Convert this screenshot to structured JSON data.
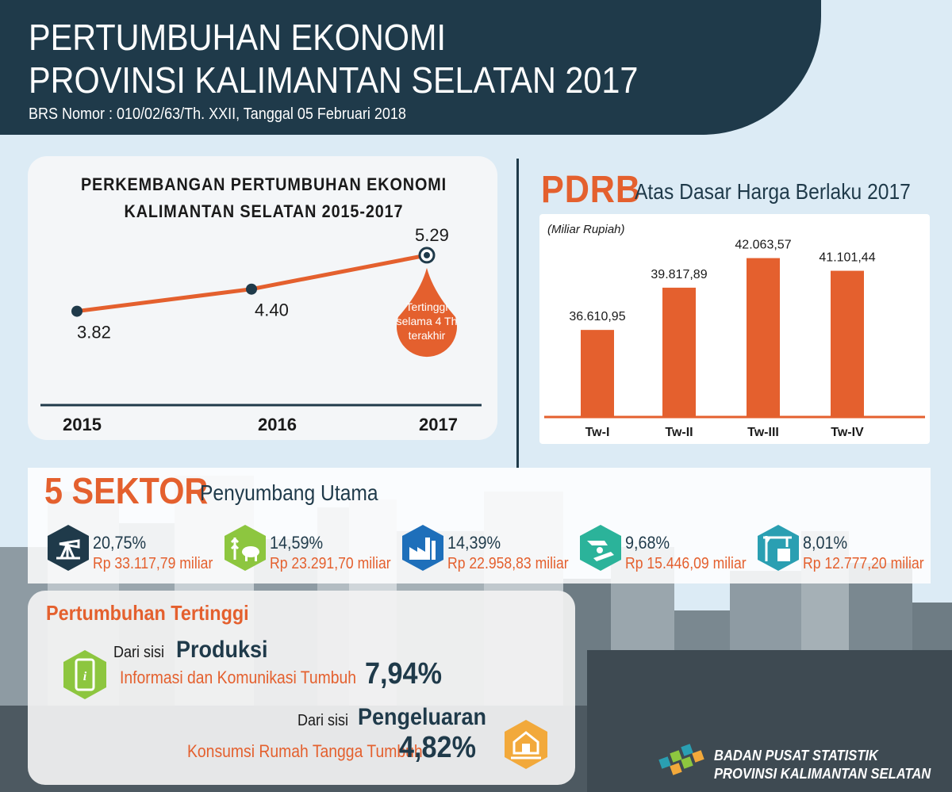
{
  "header": {
    "title_line1": "PERTUMBUHAN EKONOMI",
    "title_line2": "PROVINSI KALIMANTAN SELATAN 2017",
    "subtitle": "BRS Nomor : 010/02/63/Th. XXII, Tanggal 05 Februari 2018"
  },
  "colors": {
    "navy": "#1f3a4a",
    "orange": "#e4602e",
    "teal": "#2a9fb2",
    "green": "#8dc63f",
    "blue": "#1e6fba"
  },
  "chart_data": [
    {
      "type": "line",
      "title_line1": "PERKEMBANGAN PERTUMBUHAN EKONOMI",
      "title_line2": "KALIMANTAN SELATAN 2015-2017",
      "categories": [
        "2015",
        "2016",
        "2017"
      ],
      "values": [
        3.82,
        4.4,
        5.29
      ],
      "value_labels": [
        "3.82",
        "4.40",
        "5.29"
      ],
      "annotation": [
        "Tertinggi",
        "selama 4 Th",
        "terakhir"
      ],
      "ylim": [
        3.0,
        5.6
      ]
    },
    {
      "type": "bar",
      "title": "PDRB",
      "subtitle": "Atas Dasar Harga Berlaku 2017",
      "unit": "(Miliar Rupiah)",
      "categories": [
        "Tw-I",
        "Tw-II",
        "Tw-III",
        "Tw-IV"
      ],
      "values": [
        36610.95,
        39817.89,
        42063.57,
        41101.44
      ],
      "value_labels": [
        "36.610,95",
        "39.817,89",
        "42.063,57",
        "41.101,44"
      ],
      "ylim": [
        30000,
        43000
      ]
    }
  ],
  "sectors": {
    "title": "5 SEKTOR",
    "subtitle": "Penyumbang Utama",
    "items": [
      {
        "icon": "mining-pump-icon",
        "color": "#1f3a4a",
        "percent": "20,75%",
        "value": "Rp 33.117,79 miliar"
      },
      {
        "icon": "agriculture-icon",
        "color": "#8dc63f",
        "percent": "14,59%",
        "value": "Rp 23.291,70 miliar"
      },
      {
        "icon": "factory-icon",
        "color": "#1e6fba",
        "percent": "14,39%",
        "value": "Rp 22.958,83 miliar"
      },
      {
        "icon": "trade-car-icon",
        "color": "#2bb39a",
        "percent": "9,68%",
        "value": "Rp 15.446,09 miliar"
      },
      {
        "icon": "construction-crane-icon",
        "color": "#2a9fb2",
        "percent": "8,01%",
        "value": "Rp 12.777,20 miliar"
      }
    ]
  },
  "growth": {
    "title": "Pertumbuhan Tertinggi",
    "production_prefix": "Dari sisi",
    "production_label": "Produksi",
    "production_text": "Informasi dan Komunikasi Tumbuh",
    "production_value": "7,94%",
    "expenditure_prefix": "Dari sisi",
    "expenditure_label": "Pengeluaran",
    "expenditure_text": "Konsumsi Rumah Tangga Tumbuh",
    "expenditure_value": "4,82%"
  },
  "footer": {
    "org_line1": "BADAN PUSAT STATISTIK",
    "org_line2": "PROVINSI KALIMANTAN SELATAN"
  }
}
